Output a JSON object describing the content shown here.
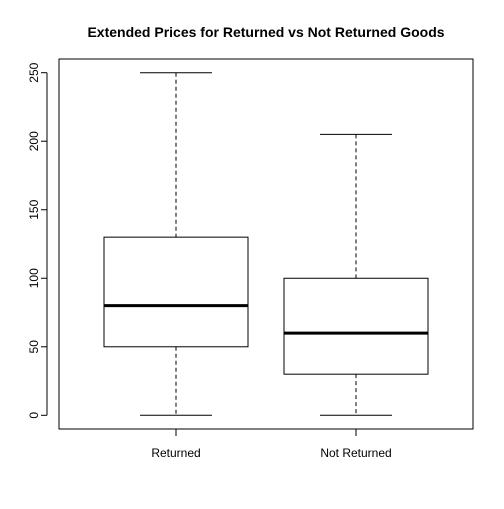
{
  "chart_data": {
    "type": "box",
    "title": "Extended Prices for Returned vs Not Returned Goods",
    "xlabel": "",
    "ylabel": "",
    "ylim": [
      -10,
      260
    ],
    "yticks": [
      0,
      50,
      100,
      150,
      200,
      250
    ],
    "grid": false,
    "categories": [
      "Returned",
      "Not Returned"
    ],
    "boxes": [
      {
        "category": "Returned",
        "min": 0,
        "q1": 50,
        "median": 80,
        "q3": 130,
        "max": 250
      },
      {
        "category": "Not Returned",
        "min": 0,
        "q1": 30,
        "median": 60,
        "q3": 100,
        "max": 205
      }
    ]
  }
}
